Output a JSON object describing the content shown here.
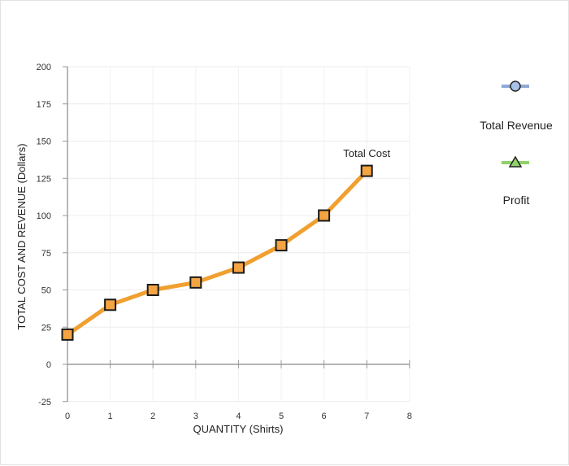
{
  "chart_data": {
    "type": "line",
    "title": "",
    "xlabel": "QUANTITY (Shirts)",
    "ylabel": "TOTAL COST AND REVENUE (Dollars)",
    "xlim": [
      0,
      8
    ],
    "ylim": [
      -25,
      200
    ],
    "x_ticks": [
      0,
      1,
      2,
      3,
      4,
      5,
      6,
      7,
      8
    ],
    "y_ticks": [
      -25,
      0,
      25,
      50,
      75,
      100,
      125,
      150,
      175,
      200
    ],
    "grid": true,
    "series": [
      {
        "name": "Total Cost",
        "color": "#f0a030",
        "marker": "square",
        "marker_fill": "#f5a442",
        "x": [
          0,
          1,
          2,
          3,
          4,
          5,
          6,
          7
        ],
        "values": [
          20,
          40,
          50,
          55,
          65,
          80,
          100,
          130
        ]
      }
    ],
    "annotations": [
      {
        "text": "Total Cost",
        "x": 7,
        "y": 130
      }
    ],
    "legend": {
      "placement": "right",
      "items": [
        {
          "label": "Total Revenue",
          "line_color": "#8fa9d6",
          "marker": "circle",
          "marker_fill": "#a9c1e8"
        },
        {
          "label": "Profit",
          "line_color": "#8fd36a",
          "marker": "triangle",
          "marker_fill": "#8fd36a"
        }
      ]
    }
  }
}
